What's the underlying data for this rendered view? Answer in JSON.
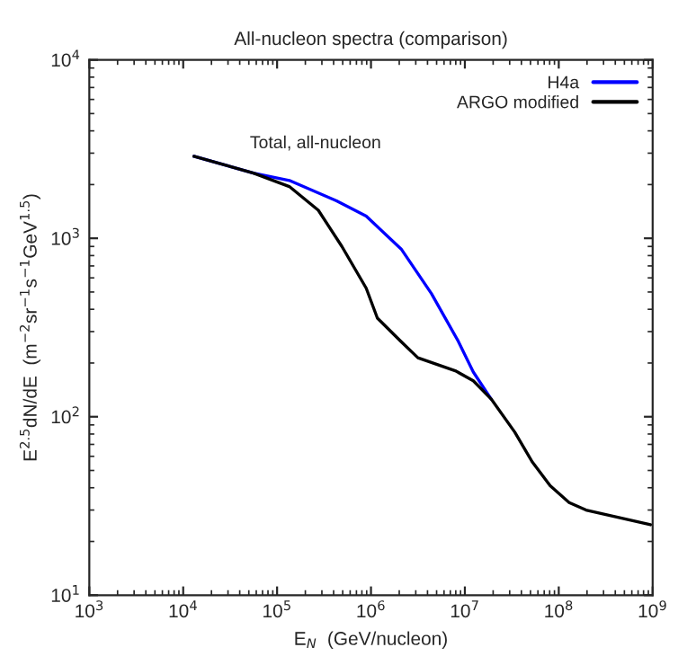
{
  "chart_data": {
    "type": "line",
    "title": "All-nucleon spectra (comparison)",
    "xlabel": "E$_{N}$  (GeV/nucleon)",
    "ylabel": "E$^{2.5}$dN/dE  (m$^{−2}$sr$^{−1}$s$^{−1}$GeV$^{1.5}$)",
    "annotations": [
      "Total, all-nucleon"
    ],
    "log": "xy",
    "grid": false,
    "legend": "top right",
    "marker": "none",
    "line_style": "solid",
    "xlim": [
      1000,
      1000000000
    ],
    "ylim": [
      10,
      10000
    ],
    "xticks": [
      {
        "value": 1000,
        "label": "10$^{3}$"
      },
      {
        "value": 10000,
        "label": "10$^{4}$"
      },
      {
        "value": 100000,
        "label": "10$^{5}$"
      },
      {
        "value": 1000000,
        "label": "10$^{6}$"
      },
      {
        "value": 10000000,
        "label": "10$^{7}$"
      },
      {
        "value": 100000000,
        "label": "10$^{8}$"
      },
      {
        "value": 1000000000,
        "label": "10$^{9}$"
      }
    ],
    "yticks": [
      {
        "value": 10,
        "label": "10$^{1}$"
      },
      {
        "value": 100,
        "label": "10$^{2}$"
      },
      {
        "value": 1000,
        "label": "10$^{3}$"
      },
      {
        "value": 10000,
        "label": "10$^{4}$"
      }
    ],
    "series": [
      {
        "name": "H4a",
        "color": "#0000ff",
        "x": [
          13000,
          56000,
          135000,
          430000,
          890000,
          2100000,
          4400000,
          8500000,
          12300000,
          19000000
        ],
        "values": [
          2880,
          2320,
          2110,
          1620,
          1330,
          870,
          490,
          265,
          178,
          126
        ]
      },
      {
        "name": "ARGO modified",
        "color": "#000000",
        "x": [
          13000,
          56000,
          135000,
          275000,
          490000,
          890000,
          1170000,
          2040000,
          3160000,
          7900000,
          12300000,
          19000000,
          34000000,
          52000000,
          81000000,
          129000000,
          195000000,
          950000000
        ],
        "values": [
          2880,
          2320,
          1950,
          1435,
          900,
          525,
          357,
          267,
          214,
          181,
          159,
          126,
          82,
          56,
          41,
          33,
          30,
          24.8
        ]
      }
    ]
  }
}
